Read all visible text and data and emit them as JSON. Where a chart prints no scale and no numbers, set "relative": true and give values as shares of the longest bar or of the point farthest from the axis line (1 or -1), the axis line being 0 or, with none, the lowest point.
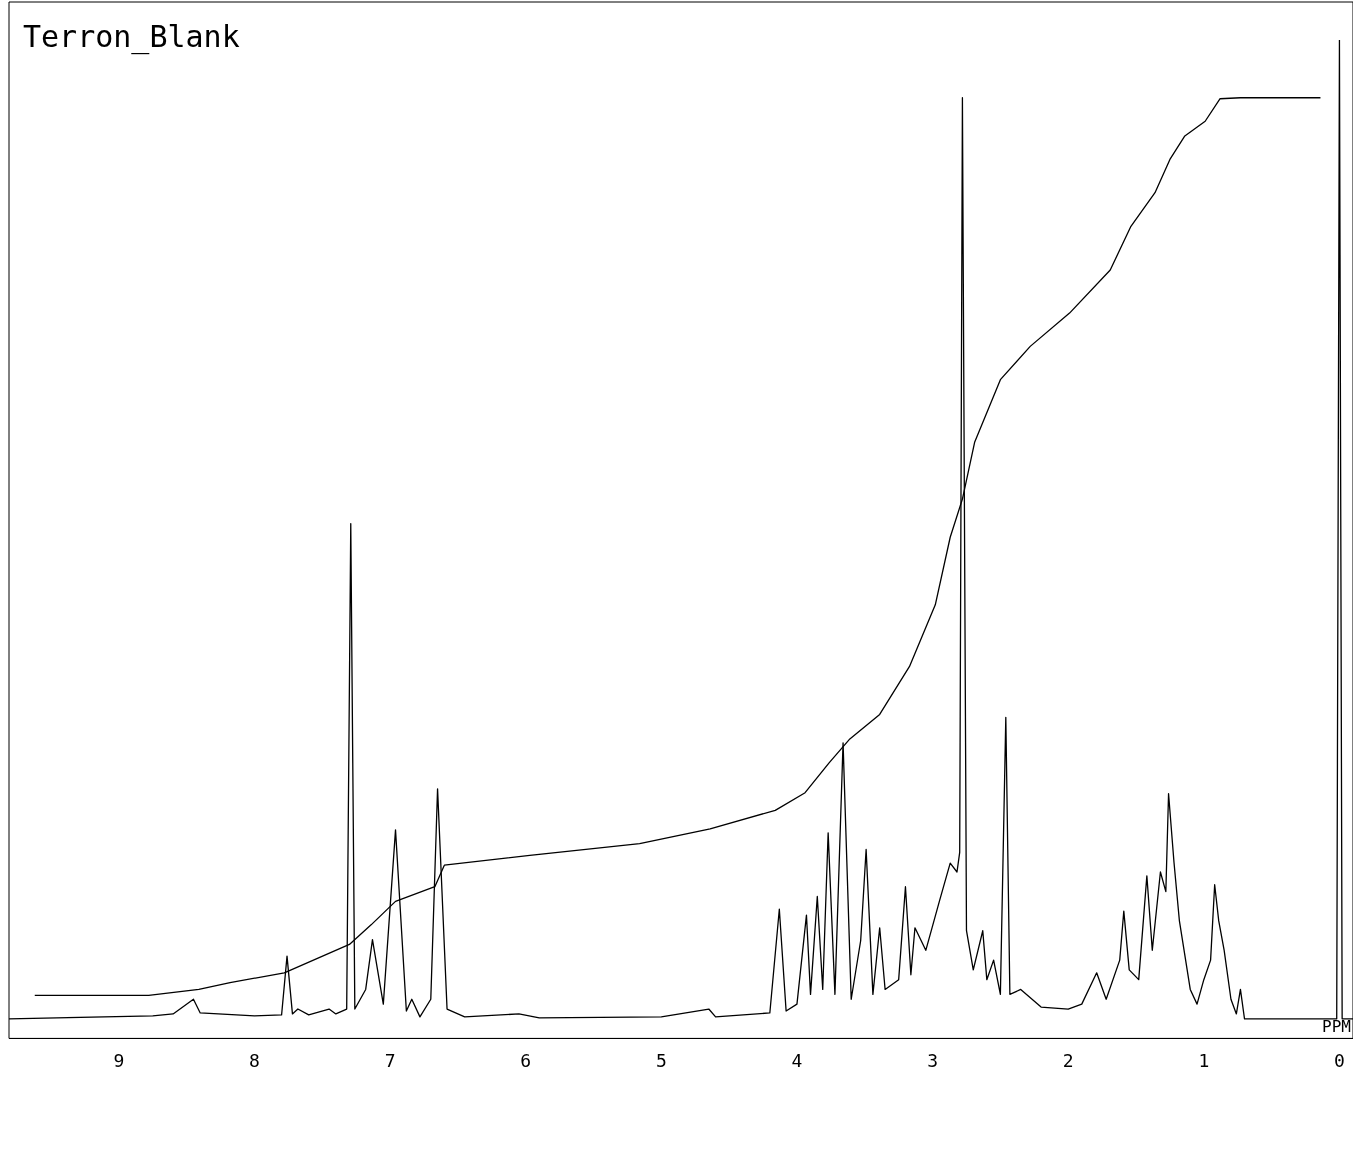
{
  "chart_data": {
    "type": "line",
    "title": "Terron_Blank",
    "xlabel": "PPM",
    "relative": true,
    "xlim": [
      9.81,
      -0.1
    ],
    "xticks": [
      9,
      8,
      7,
      6,
      5,
      4,
      3,
      2,
      1,
      0
    ],
    "grid": false,
    "legend": false,
    "marker": "none",
    "line_style": "solid",
    "series": [
      {
        "color": "#000000",
        "x": [
          9.81,
          8.75,
          8.6,
          8.45,
          8.4,
          8.0,
          7.8,
          7.76,
          7.72,
          7.68,
          7.6,
          7.45,
          7.4,
          7.32,
          7.29,
          7.26,
          7.18,
          7.13,
          7.05,
          6.96,
          6.88,
          6.84,
          6.78,
          6.7,
          6.65,
          6.58,
          6.45,
          6.05,
          5.9,
          5.0,
          4.65,
          4.6,
          4.2,
          4.13,
          4.08,
          4.0,
          3.93,
          3.9,
          3.85,
          3.81,
          3.77,
          3.72,
          3.66,
          3.6,
          3.53,
          3.49,
          3.44,
          3.39,
          3.35,
          3.25,
          3.2,
          3.16,
          3.13,
          3.05,
          2.95,
          2.87,
          2.82,
          2.8,
          2.78,
          2.75,
          2.7,
          2.63,
          2.6,
          2.55,
          2.5,
          2.46,
          2.43,
          2.35,
          2.2,
          2.0,
          1.9,
          1.79,
          1.72,
          1.62,
          1.59,
          1.55,
          1.48,
          1.42,
          1.38,
          1.32,
          1.28,
          1.26,
          1.22,
          1.18,
          1.1,
          1.05,
          1.0,
          0.95,
          0.92,
          0.89,
          0.85,
          0.8,
          0.76,
          0.73,
          0.7,
          0.1,
          0.02,
          0.0,
          -0.02,
          -0.1
        ],
        "values": [
          0,
          0.003,
          0.005,
          0.02,
          0.006,
          0.003,
          0.004,
          0.064,
          0.005,
          0.01,
          0.004,
          0.01,
          0.005,
          0.01,
          0.506,
          0.01,
          0.03,
          0.081,
          0.015,
          0.193,
          0.008,
          0.02,
          0.002,
          0.02,
          0.235,
          0.01,
          0.002,
          0.005,
          0.001,
          0.002,
          0.01,
          0.002,
          0.006,
          0.112,
          0.008,
          0.015,
          0.106,
          0.025,
          0.125,
          0.03,
          0.19,
          0.025,
          0.282,
          0.02,
          0.08,
          0.173,
          0.025,
          0.093,
          0.03,
          0.04,
          0.135,
          0.045,
          0.093,
          0.07,
          0.12,
          0.159,
          0.15,
          0.17,
          0.941,
          0.09,
          0.05,
          0.09,
          0.04,
          0.06,
          0.025,
          0.308,
          0.025,
          0.03,
          0.012,
          0.01,
          0.015,
          0.047,
          0.02,
          0.06,
          0.11,
          0.05,
          0.04,
          0.146,
          0.07,
          0.15,
          0.13,
          0.23,
          0.16,
          0.1,
          0.03,
          0.015,
          0.04,
          0.06,
          0.137,
          0.1,
          0.07,
          0.02,
          0.005,
          0.03,
          0,
          0,
          0,
          1.0,
          0,
          0
        ]
      },
      {
        "color": "#000000",
        "x": [
          9.62,
          8.78,
          8.41,
          8.18,
          7.78,
          7.3,
          7.14,
          6.96,
          6.67,
          6.6,
          5.97,
          5.16,
          4.64,
          4.16,
          3.94,
          3.76,
          3.61,
          3.39,
          3.17,
          2.98,
          2.87,
          2.78,
          2.69,
          2.5,
          2.28,
          1.99,
          1.69,
          1.54,
          1.36,
          1.25,
          1.14,
          0.99,
          0.88,
          0.73,
          0.14
        ],
        "values": [
          0.024,
          0.024,
          0.03,
          0.037,
          0.047,
          0.076,
          0.096,
          0.12,
          0.135,
          0.157,
          0.167,
          0.179,
          0.194,
          0.213,
          0.231,
          0.262,
          0.286,
          0.311,
          0.36,
          0.423,
          0.492,
          0.531,
          0.589,
          0.653,
          0.687,
          0.721,
          0.765,
          0.809,
          0.844,
          0.878,
          0.902,
          0.917,
          0.94,
          0.941,
          0.941
        ]
      }
    ]
  }
}
